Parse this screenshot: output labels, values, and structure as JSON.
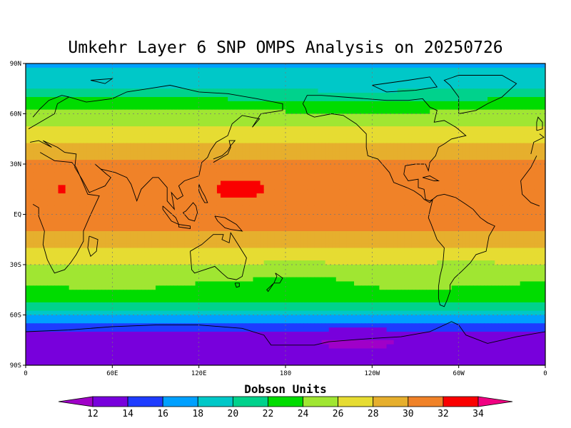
{
  "title": "Umkehr Layer 6 SNP OMPS Analysis on 20250726",
  "colorbar": {
    "title": "Dobson Units",
    "ticks": [
      "12",
      "14",
      "16",
      "18",
      "20",
      "22",
      "24",
      "26",
      "28",
      "30",
      "32",
      "34"
    ],
    "levels": [
      12,
      14,
      16,
      18,
      20,
      22,
      24,
      26,
      28,
      30,
      32,
      34
    ],
    "colors": [
      "#a000c8",
      "#7800dc",
      "#1e3cff",
      "#00a0ff",
      "#00c8c8",
      "#00d28c",
      "#00dc00",
      "#a0e632",
      "#e6dc32",
      "#e6af2d",
      "#f08228",
      "#fa0000",
      "#f00082"
    ]
  },
  "axes": {
    "y_labels": [
      "90N",
      "60N",
      "30N",
      "EQ",
      "30S",
      "60S",
      "90S"
    ],
    "x_labels": [
      "0",
      "60E",
      "120E",
      "180",
      "120W",
      "60W",
      "0"
    ]
  },
  "chart_data": {
    "type": "heatmap",
    "title": "Umkehr Layer 6 SNP OMPS Analysis on 20250726",
    "units": "Dobson Units",
    "xlim": [
      0,
      360
    ],
    "ylim": [
      -90,
      90
    ],
    "zonal_profile": {
      "lat": [
        90,
        80,
        72,
        66,
        60,
        52,
        45,
        38,
        30,
        20,
        10,
        0,
        -10,
        -20,
        -25,
        -32,
        -38,
        -45,
        -52,
        -58,
        -62,
        -68,
        -75,
        -82,
        -90
      ],
      "value": [
        17.5,
        19,
        21,
        23,
        24.5,
        26,
        27.5,
        29,
        30.5,
        31.3,
        31.2,
        30.8,
        30,
        28.3,
        27,
        25.3,
        24.3,
        23.6,
        22,
        19.5,
        17,
        14.5,
        13,
        12.4,
        13
      ]
    },
    "features": [
      {
        "label": "maximum",
        "lon": 148,
        "lat": 15,
        "value": 32.5
      },
      {
        "label": "maximum",
        "lon": 25,
        "lat": 15,
        "value": 32.2
      },
      {
        "label": "minimum",
        "lon": 230,
        "lat": -75,
        "value": 11.8
      }
    ]
  }
}
